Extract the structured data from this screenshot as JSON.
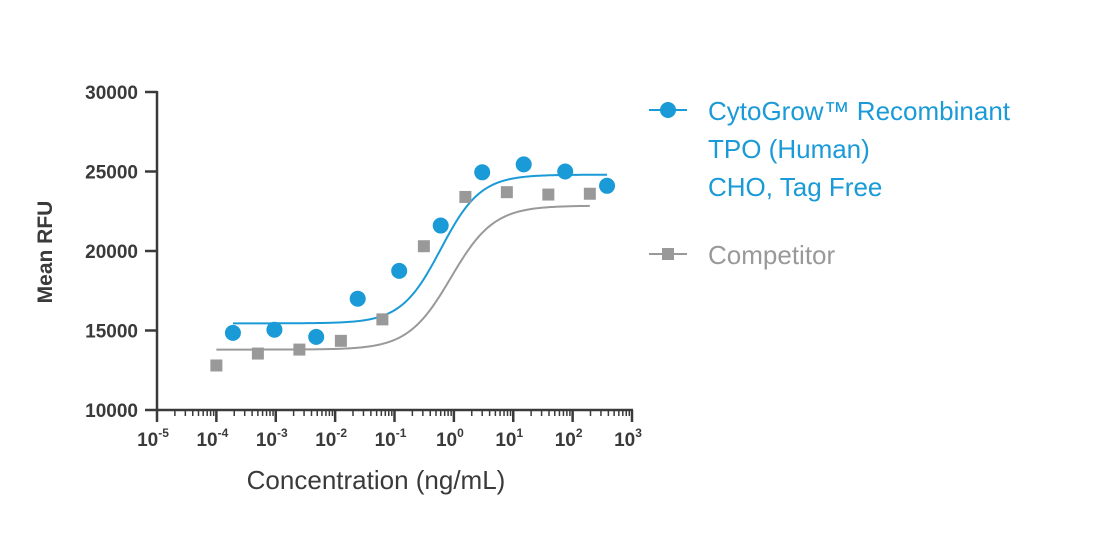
{
  "chart_data": {
    "type": "scatter",
    "xlabel": "Concentration (ng/mL)",
    "ylabel": "Mean RFU",
    "x_scale": "log10",
    "xlim": [
      1e-05,
      1000
    ],
    "ylim": [
      10000,
      30000
    ],
    "y_ticks": [
      "10000",
      "15000",
      "20000",
      "25000",
      "30000"
    ],
    "x_ticks": [
      {
        "base": "10",
        "exp": "-5"
      },
      {
        "base": "10",
        "exp": "-4"
      },
      {
        "base": "10",
        "exp": "-3"
      },
      {
        "base": "10",
        "exp": "-2"
      },
      {
        "base": "10",
        "exp": "-1"
      },
      {
        "base": "10",
        "exp": "0"
      },
      {
        "base": "10",
        "exp": "1"
      },
      {
        "base": "10",
        "exp": "2"
      },
      {
        "base": "10",
        "exp": "3"
      }
    ],
    "legend_position": "right",
    "series": [
      {
        "name_lines": [
          "CytoGrow™ Recombinant",
          "TPO (Human)",
          "CHO, Tag Free"
        ],
        "color": "#1a9ad6",
        "marker": "circle",
        "x": [
          0.00019,
          0.00095,
          0.0048,
          0.024,
          0.12,
          0.6,
          3.0,
          15,
          75,
          380
        ],
        "y": [
          14850,
          15050,
          14600,
          17000,
          18750,
          21600,
          24950,
          25450,
          25000,
          24100
        ],
        "fit": {
          "bottom": 15450,
          "top": 24800,
          "log_ec50": -0.22,
          "hill": 1.3,
          "x_range": [
            0.00019,
            380
          ]
        }
      },
      {
        "name_lines": [
          "Competitor"
        ],
        "color": "#999999",
        "marker": "square",
        "x": [
          0.0001,
          0.0005,
          0.0025,
          0.0125,
          0.0625,
          0.3125,
          1.5625,
          7.8,
          39,
          195
        ],
        "y": [
          12800,
          13550,
          13800,
          14350,
          15700,
          20300,
          23400,
          23700,
          23550,
          23600
        ],
        "fit": {
          "bottom": 13800,
          "top": 22850,
          "log_ec50": -0.05,
          "hill": 1.2,
          "x_range": [
            0.0001,
            195
          ]
        }
      }
    ]
  }
}
